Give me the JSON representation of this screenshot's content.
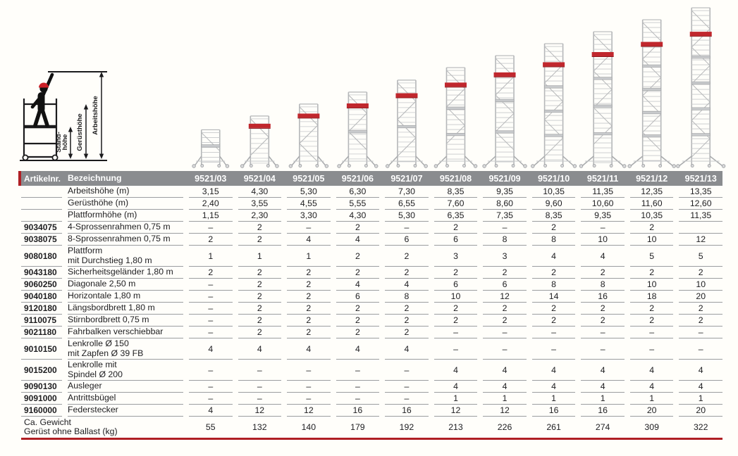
{
  "diagram": {
    "arbeitshoehe": "Arbeitshöhe",
    "geruesthoehe": "Gerüsthöhe",
    "standhoehe_line1": "Stand-",
    "standhoehe_line2": "höhe"
  },
  "table": {
    "header": {
      "artikelnr": "Artikelnr.",
      "bezeichnung": "Bezeichnung",
      "models": [
        "9521/03",
        "9521/04",
        "9521/05",
        "9521/06",
        "9521/07",
        "9521/08",
        "9521/09",
        "9521/10",
        "9521/11",
        "9521/12",
        "9521/13"
      ]
    },
    "rows": [
      {
        "nr": "",
        "label": "Arbeitshöhe (m)",
        "values": [
          "3,15",
          "4,30",
          "5,30",
          "6,30",
          "7,30",
          "8,35",
          "9,35",
          "10,35",
          "11,35",
          "12,35",
          "13,35"
        ]
      },
      {
        "nr": "",
        "label": "Gerüsthöhe (m)",
        "values": [
          "2,40",
          "3,55",
          "4,55",
          "5,55",
          "6,55",
          "7,60",
          "8,60",
          "9,60",
          "10,60",
          "11,60",
          "12,60"
        ]
      },
      {
        "nr": "",
        "label": "Plattformhöhe (m)",
        "values": [
          "1,15",
          "2,30",
          "3,30",
          "4,30",
          "5,30",
          "6,35",
          "7,35",
          "8,35",
          "9,35",
          "10,35",
          "11,35"
        ]
      },
      {
        "nr": "9034075",
        "label": "4-Sprossenrahmen 0,75 m",
        "values": [
          "–",
          "2",
          "–",
          "2",
          "–",
          "2",
          "–",
          "2",
          "–",
          "2",
          ""
        ]
      },
      {
        "nr": "9038075",
        "label": "8-Sprossenrahmen 0,75 m",
        "values": [
          "2",
          "2",
          "4",
          "4",
          "6",
          "6",
          "8",
          "8",
          "10",
          "10",
          "12"
        ]
      },
      {
        "nr": "9080180",
        "label": "Plattform\nmit Durchstieg 1,80 m",
        "values": [
          "1",
          "1",
          "1",
          "2",
          "2",
          "3",
          "3",
          "4",
          "4",
          "5",
          "5"
        ]
      },
      {
        "nr": "9043180",
        "label": "Sicherheitsgeländer 1,80 m",
        "values": [
          "2",
          "2",
          "2",
          "2",
          "2",
          "2",
          "2",
          "2",
          "2",
          "2",
          "2"
        ]
      },
      {
        "nr": "9060250",
        "label": "Diagonale 2,50 m",
        "values": [
          "–",
          "2",
          "2",
          "4",
          "4",
          "6",
          "6",
          "8",
          "8",
          "10",
          "10"
        ]
      },
      {
        "nr": "9040180",
        "label": "Horizontale 1,80 m",
        "values": [
          "–",
          "2",
          "2",
          "6",
          "8",
          "10",
          "12",
          "14",
          "16",
          "18",
          "20"
        ]
      },
      {
        "nr": "9120180",
        "label": "Längsbordbrett 1,80 m",
        "values": [
          "–",
          "2",
          "2",
          "2",
          "2",
          "2",
          "2",
          "2",
          "2",
          "2",
          "2"
        ]
      },
      {
        "nr": "9110075",
        "label": "Stirnbordbrett 0,75 m",
        "values": [
          "–",
          "2",
          "2",
          "2",
          "2",
          "2",
          "2",
          "2",
          "2",
          "2",
          "2"
        ]
      },
      {
        "nr": "9021180",
        "label": "Fahrbalken verschiebbar",
        "values": [
          "–",
          "2",
          "2",
          "2",
          "2",
          "–",
          "–",
          "–",
          "–",
          "–",
          "–"
        ]
      },
      {
        "nr": "9010150",
        "label": "Lenkrolle Ø 150\nmit Zapfen Ø 39 FB",
        "values": [
          "4",
          "4",
          "4",
          "4",
          "4",
          "–",
          "–",
          "–",
          "–",
          "–",
          "–"
        ]
      },
      {
        "nr": "9015200",
        "label": "Lenkrolle mit\nSpindel Ø 200",
        "values": [
          "–",
          "–",
          "–",
          "–",
          "–",
          "4",
          "4",
          "4",
          "4",
          "4",
          "4"
        ]
      },
      {
        "nr": "9090130",
        "label": "Ausleger",
        "values": [
          "–",
          "–",
          "–",
          "–",
          "–",
          "4",
          "4",
          "4",
          "4",
          "4",
          "4"
        ]
      },
      {
        "nr": "9091000",
        "label": "Antrittsbügel",
        "values": [
          "–",
          "–",
          "–",
          "–",
          "–",
          "1",
          "1",
          "1",
          "1",
          "1",
          "1"
        ]
      },
      {
        "nr": "9160000",
        "label": "Federstecker",
        "values": [
          "4",
          "12",
          "12",
          "16",
          "16",
          "12",
          "12",
          "16",
          "16",
          "20",
          "20"
        ]
      }
    ],
    "footer": {
      "label": "Ca. Gewicht\nGerüst ohne Ballast (kg)",
      "values": [
        "55",
        "132",
        "140",
        "179",
        "192",
        "213",
        "226",
        "261",
        "274",
        "309",
        "322"
      ]
    }
  },
  "colors": {
    "header_bg": "#8a8c8f",
    "accent_red": "#b01f24",
    "platform_red": "#c1272d",
    "text": "#1d1d20",
    "header_text": "#ffffff",
    "rule_gray": "#9b9da0",
    "tower_gray": "#b4b6b8"
  }
}
